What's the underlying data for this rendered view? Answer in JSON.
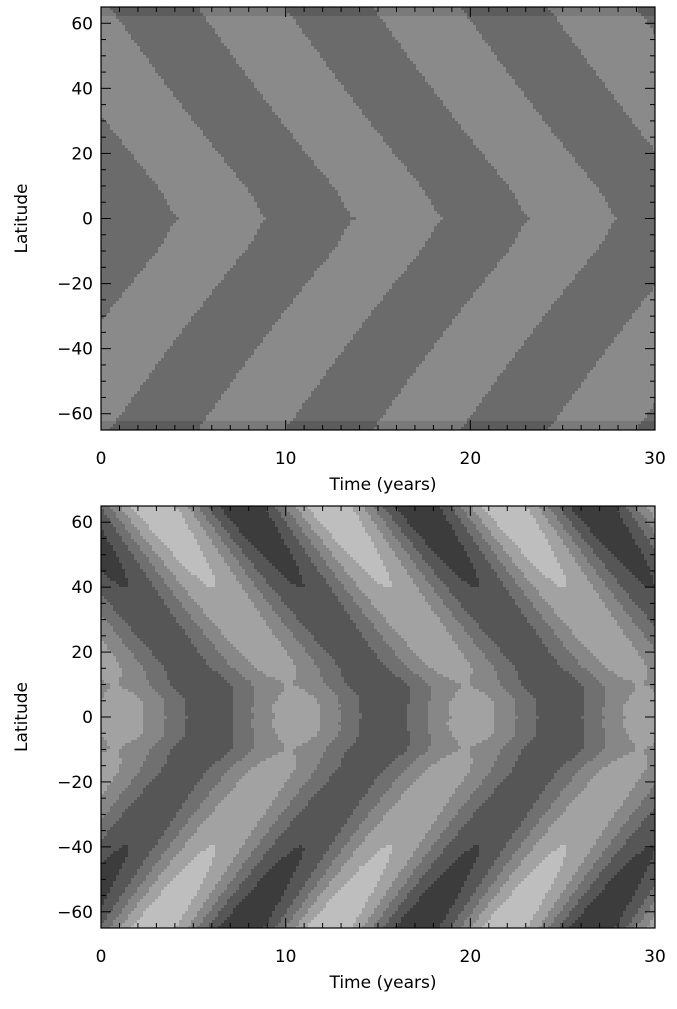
{
  "chart_data": [
    {
      "type": "heatmap",
      "title": "",
      "xlabel": "Time (years)",
      "ylabel": "Latitude",
      "xlim": [
        0,
        30
      ],
      "ylim": [
        -65,
        65
      ],
      "xticks": [
        0,
        10,
        20,
        30
      ],
      "yticks": [
        -60,
        -40,
        -20,
        0,
        20,
        40,
        60
      ],
      "grid": false,
      "legend": "none",
      "colors": [
        "#5c5c5c",
        "#6b6b6b",
        "#7a7a7a",
        "#8a8a8a"
      ],
      "model": {
        "period_years": 9.5,
        "equatorward_migration": true,
        "contour_levels": 2,
        "structure": "two-level pattern; narrow bands near the equator, wide bands toward the poles"
      }
    },
    {
      "type": "heatmap",
      "title": "",
      "xlabel": "Time (years)",
      "ylabel": "Latitude",
      "xlim": [
        0,
        30
      ],
      "ylim": [
        -65,
        65
      ],
      "xticks": [
        0,
        10,
        20,
        30
      ],
      "yticks": [
        -60,
        -40,
        -20,
        0,
        20,
        40,
        60
      ],
      "grid": false,
      "legend": "none",
      "colors": [
        "#3c3c3c",
        "#565656",
        "#707070",
        "#878787",
        "#a2a2a2",
        "#bebebe"
      ],
      "model": {
        "period_years": 9.5,
        "equatorward_migration": true,
        "contour_levels": 6,
        "structure": "multi-level butterfly pattern with strongest contrast near the poles and blobs at the equator"
      }
    }
  ]
}
